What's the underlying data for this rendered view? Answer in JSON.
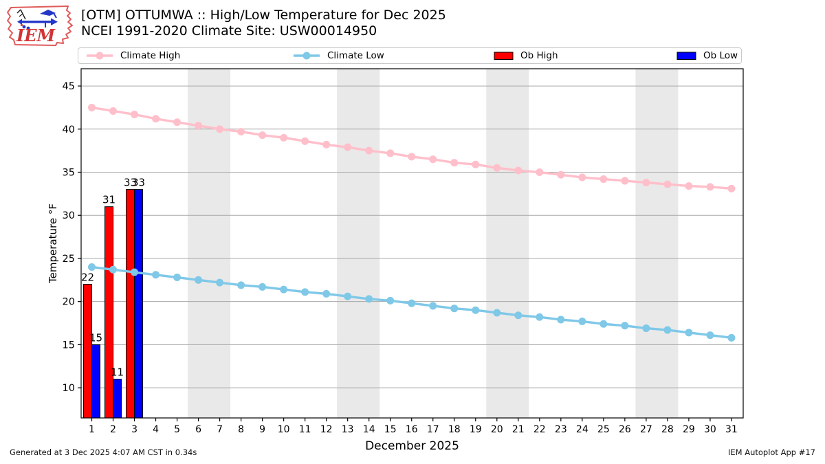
{
  "header": {
    "title_line1": "[OTM] OTTUMWA :: High/Low Temperature for Dec 2025",
    "title_line2": "NCEI 1991-2020 Climate Site: USW00014950",
    "logo_text": "IEM"
  },
  "legend": {
    "items": [
      {
        "label": "Climate High",
        "type": "line",
        "color": "#ffbfca"
      },
      {
        "label": "Climate Low",
        "type": "line",
        "color": "#7fc8e8"
      },
      {
        "label": "Ob High",
        "type": "patch",
        "color": "#ff0000"
      },
      {
        "label": "Ob Low",
        "type": "patch",
        "color": "#0000ff"
      }
    ]
  },
  "footer": {
    "left": "Generated at 3 Dec 2025 4:07 AM CST in 0.34s",
    "right": "IEM Autoplot App #17"
  },
  "chart_data": {
    "type": "line+bar",
    "title": "[OTM] OTTUMWA :: High/Low Temperature for Dec 2025",
    "subtitle": "NCEI 1991-2020 Climate Site: USW00014950",
    "xlabel": "December 2025",
    "ylabel": "Temperature °F",
    "x": [
      1,
      2,
      3,
      4,
      5,
      6,
      7,
      8,
      9,
      10,
      11,
      12,
      13,
      14,
      15,
      16,
      17,
      18,
      19,
      20,
      21,
      22,
      23,
      24,
      25,
      26,
      27,
      28,
      29,
      30,
      31
    ],
    "xlim": [
      0.5,
      31.55
    ],
    "ylim": [
      6.5,
      47.0
    ],
    "yticks": [
      10,
      15,
      20,
      25,
      30,
      35,
      40,
      45
    ],
    "grid": true,
    "legend_position": "top",
    "weekend_bands": [
      [
        5.5,
        7.5
      ],
      [
        12.5,
        14.5
      ],
      [
        19.5,
        21.5
      ],
      [
        26.5,
        28.5
      ]
    ],
    "bar_days": [
      1,
      2,
      3
    ],
    "series": [
      {
        "name": "Climate High",
        "type": "line",
        "color": "#ffbfca",
        "values": [
          42.5,
          42.1,
          41.7,
          41.2,
          40.8,
          40.4,
          40.0,
          39.7,
          39.3,
          39.0,
          38.6,
          38.2,
          37.9,
          37.5,
          37.2,
          36.8,
          36.5,
          36.1,
          35.9,
          35.5,
          35.2,
          35.0,
          34.7,
          34.4,
          34.2,
          34.0,
          33.8,
          33.6,
          33.4,
          33.3,
          33.1
        ]
      },
      {
        "name": "Climate Low",
        "type": "line",
        "color": "#7fc8e8",
        "values": [
          24.0,
          23.7,
          23.4,
          23.1,
          22.8,
          22.5,
          22.2,
          21.9,
          21.7,
          21.4,
          21.1,
          20.9,
          20.6,
          20.3,
          20.1,
          19.8,
          19.5,
          19.2,
          19.0,
          18.7,
          18.4,
          18.2,
          17.9,
          17.7,
          17.4,
          17.2,
          16.9,
          16.7,
          16.4,
          16.1,
          15.8
        ]
      },
      {
        "name": "Ob High",
        "type": "bar",
        "side": "left",
        "color": "#ff0000",
        "values": [
          22,
          31,
          33
        ]
      },
      {
        "name": "Ob Low",
        "type": "bar",
        "side": "right",
        "color": "#0000ff",
        "values": [
          15,
          11,
          33
        ]
      }
    ],
    "style": {
      "band_color": "#e9e9e9",
      "grid_color": "#a8a8a8",
      "bar_edge_color": "#000000"
    }
  }
}
